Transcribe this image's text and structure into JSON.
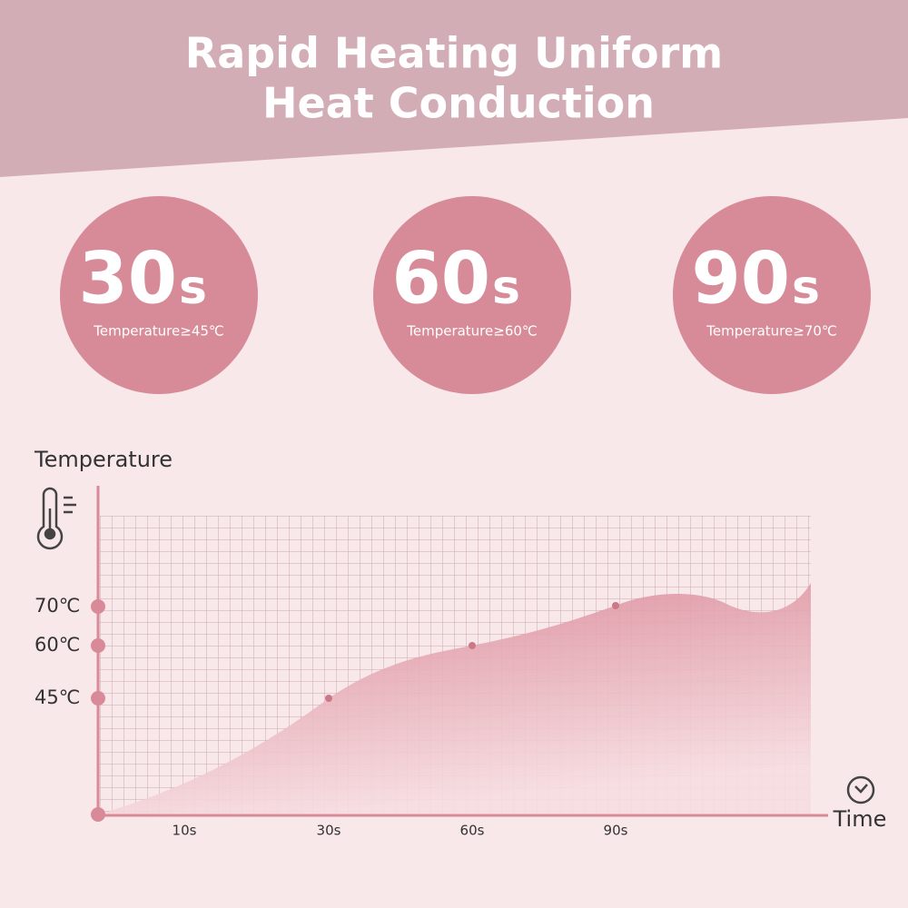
{
  "header": {
    "title_lines": [
      "Rapid Heating Uniform",
      "Heat Conduction"
    ]
  },
  "badges": [
    {
      "time": "30",
      "unit": "s",
      "caption": "Temperature≥45℃"
    },
    {
      "time": "60",
      "unit": "s",
      "caption": "Temperature≥60℃"
    },
    {
      "time": "90",
      "unit": "s",
      "caption": "Temperature≥70℃"
    }
  ],
  "graph": {
    "y_title": "Temperature",
    "y_labels": [
      "70℃",
      "60℃",
      "45℃"
    ],
    "x_labels": [
      "10s",
      "30s",
      "60s",
      "90s"
    ],
    "x_title": "Time"
  }
}
